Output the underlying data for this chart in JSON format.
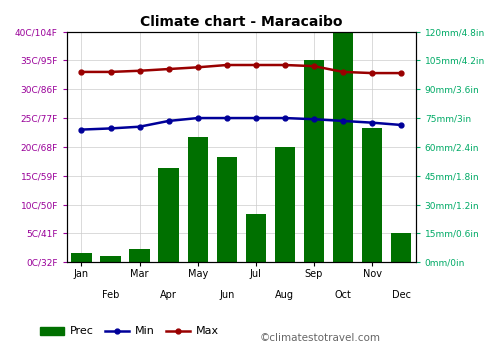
{
  "title": "Climate chart - Maracaibo",
  "months": [
    "Jan",
    "Feb",
    "Mar",
    "Apr",
    "May",
    "Jun",
    "Jul",
    "Aug",
    "Sep",
    "Oct",
    "Nov",
    "Dec"
  ],
  "months_odd": [
    "Jan",
    "Mar",
    "May",
    "Jul",
    "Sep",
    "Nov"
  ],
  "months_even": [
    "Feb",
    "Apr",
    "Jun",
    "Aug",
    "Oct",
    "Dec"
  ],
  "precip_mm": [
    5,
    3,
    7,
    49,
    65,
    55,
    25,
    60,
    105,
    125,
    70,
    15
  ],
  "temp_min_c": [
    23.0,
    23.2,
    23.5,
    24.5,
    25.0,
    25.0,
    25.0,
    25.0,
    24.8,
    24.5,
    24.2,
    23.8
  ],
  "temp_max_c": [
    33.0,
    33.0,
    33.2,
    33.5,
    33.8,
    34.2,
    34.2,
    34.2,
    34.0,
    33.0,
    32.8,
    32.8
  ],
  "bar_color": "#007000",
  "min_line_color": "#000099",
  "max_line_color": "#990000",
  "left_axis_color": "#990099",
  "right_axis_color": "#00AA66",
  "grid_color": "#cccccc",
  "bg_color": "#ffffff",
  "left_yticks_c": [
    0,
    5,
    10,
    15,
    20,
    25,
    30,
    35,
    40
  ],
  "left_ytick_labels": [
    "0C/32F",
    "5C/41F",
    "10C/50F",
    "15C/59F",
    "20C/68F",
    "25C/77F",
    "30C/86F",
    "35C/95F",
    "40C/104F"
  ],
  "right_yticks_mm": [
    0,
    15,
    30,
    45,
    60,
    75,
    90,
    105,
    120
  ],
  "right_ytick_labels": [
    "0mm/0in",
    "15mm/0.6in",
    "30mm/1.2in",
    "45mm/1.8in",
    "60mm/2.4in",
    "75mm/3in",
    "90mm/3.6in",
    "105mm/4.2in",
    "120mm/4.8in"
  ],
  "temp_scale_factor": 3.0,
  "watermark": "©climatestotravel.com"
}
